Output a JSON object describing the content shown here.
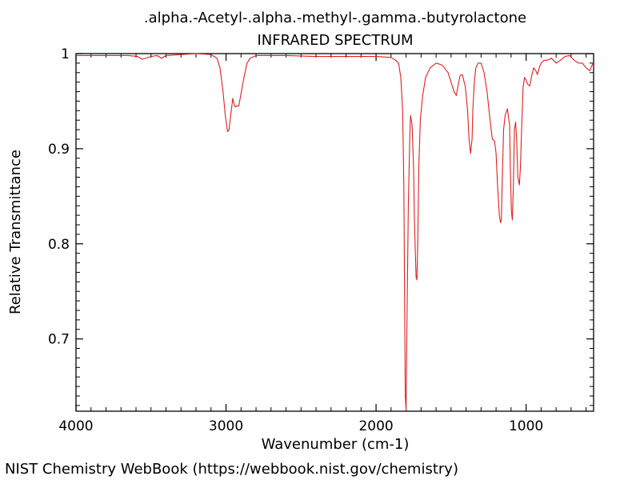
{
  "footer": "NIST Chemistry WebBook (https://webbook.nist.gov/chemistry)",
  "chart_data": {
    "type": "line",
    "title": ".alpha.-Acetyl-.alpha.-methyl-.gamma.-butyrolactone",
    "subtitle": "INFRARED SPECTRUM",
    "xlabel": "Wavenumber (cm-1)",
    "ylabel": "Relative Transmittance",
    "xlim": [
      4000,
      550
    ],
    "ylim": [
      0.624,
      1.0
    ],
    "x_reversed": true,
    "x_ticks": [
      4000,
      3000,
      2000,
      1000
    ],
    "x_tick_labels": [
      "4000",
      "3000",
      "2000",
      "1000"
    ],
    "y_ticks": [
      1.0,
      0.9,
      0.8,
      0.7
    ],
    "y_tick_labels": [
      "1",
      "0.9",
      "0.8",
      "0.7"
    ],
    "line_color": "#e02020",
    "grid": false,
    "legend": "none",
    "series": [
      {
        "x": [
          4000,
          3800,
          3650,
          3590,
          3560,
          3500,
          3460,
          3430,
          3400,
          3300,
          3200,
          3100,
          3060,
          3040,
          3020,
          3005,
          2990,
          2980,
          2965,
          2955,
          2948,
          2940,
          2930,
          2915,
          2900,
          2880,
          2860,
          2840,
          2800,
          2700,
          2600,
          2400,
          2200,
          2000,
          1900,
          1870,
          1850,
          1835,
          1823,
          1815,
          1810,
          1805,
          1800,
          1795,
          1785,
          1775,
          1770,
          1760,
          1750,
          1745,
          1738,
          1733,
          1728,
          1722,
          1715,
          1705,
          1690,
          1670,
          1640,
          1600,
          1560,
          1520,
          1500,
          1480,
          1465,
          1455,
          1440,
          1425,
          1405,
          1390,
          1380,
          1370,
          1360,
          1355,
          1345,
          1335,
          1320,
          1300,
          1280,
          1260,
          1240,
          1225,
          1210,
          1200,
          1190,
          1178,
          1170,
          1165,
          1160,
          1150,
          1140,
          1125,
          1110,
          1105,
          1098,
          1092,
          1085,
          1078,
          1070,
          1063,
          1055,
          1045,
          1038,
          1030,
          1020,
          1010,
          1000,
          990,
          975,
          965,
          950,
          935,
          925,
          912,
          900,
          880,
          860,
          830,
          800,
          770,
          740,
          710,
          680,
          650,
          625,
          600,
          575,
          555,
          550
        ],
        "y": [
          0.998,
          0.998,
          0.998,
          0.997,
          0.994,
          0.997,
          0.998,
          0.995,
          0.998,
          0.999,
          1.0,
          0.999,
          0.995,
          0.985,
          0.96,
          0.935,
          0.918,
          0.92,
          0.94,
          0.953,
          0.948,
          0.944,
          0.945,
          0.945,
          0.958,
          0.975,
          0.99,
          0.995,
          0.998,
          0.998,
          0.998,
          0.997,
          0.997,
          0.997,
          0.996,
          0.993,
          0.99,
          0.975,
          0.94,
          0.86,
          0.75,
          0.64,
          0.625,
          0.7,
          0.84,
          0.915,
          0.935,
          0.925,
          0.88,
          0.83,
          0.79,
          0.765,
          0.762,
          0.8,
          0.88,
          0.93,
          0.955,
          0.975,
          0.985,
          0.99,
          0.988,
          0.98,
          0.97,
          0.96,
          0.956,
          0.965,
          0.977,
          0.978,
          0.965,
          0.94,
          0.91,
          0.895,
          0.91,
          0.94,
          0.97,
          0.985,
          0.99,
          0.99,
          0.98,
          0.96,
          0.93,
          0.91,
          0.908,
          0.895,
          0.86,
          0.83,
          0.822,
          0.825,
          0.86,
          0.92,
          0.935,
          0.942,
          0.925,
          0.88,
          0.835,
          0.825,
          0.86,
          0.92,
          0.928,
          0.91,
          0.87,
          0.862,
          0.88,
          0.92,
          0.965,
          0.975,
          0.972,
          0.968,
          0.966,
          0.975,
          0.985,
          0.982,
          0.978,
          0.985,
          0.99,
          0.993,
          0.993,
          0.995,
          0.99,
          0.993,
          0.997,
          0.998,
          0.993,
          0.99,
          0.99,
          0.985,
          0.982,
          0.99,
          0.99
        ]
      }
    ]
  }
}
